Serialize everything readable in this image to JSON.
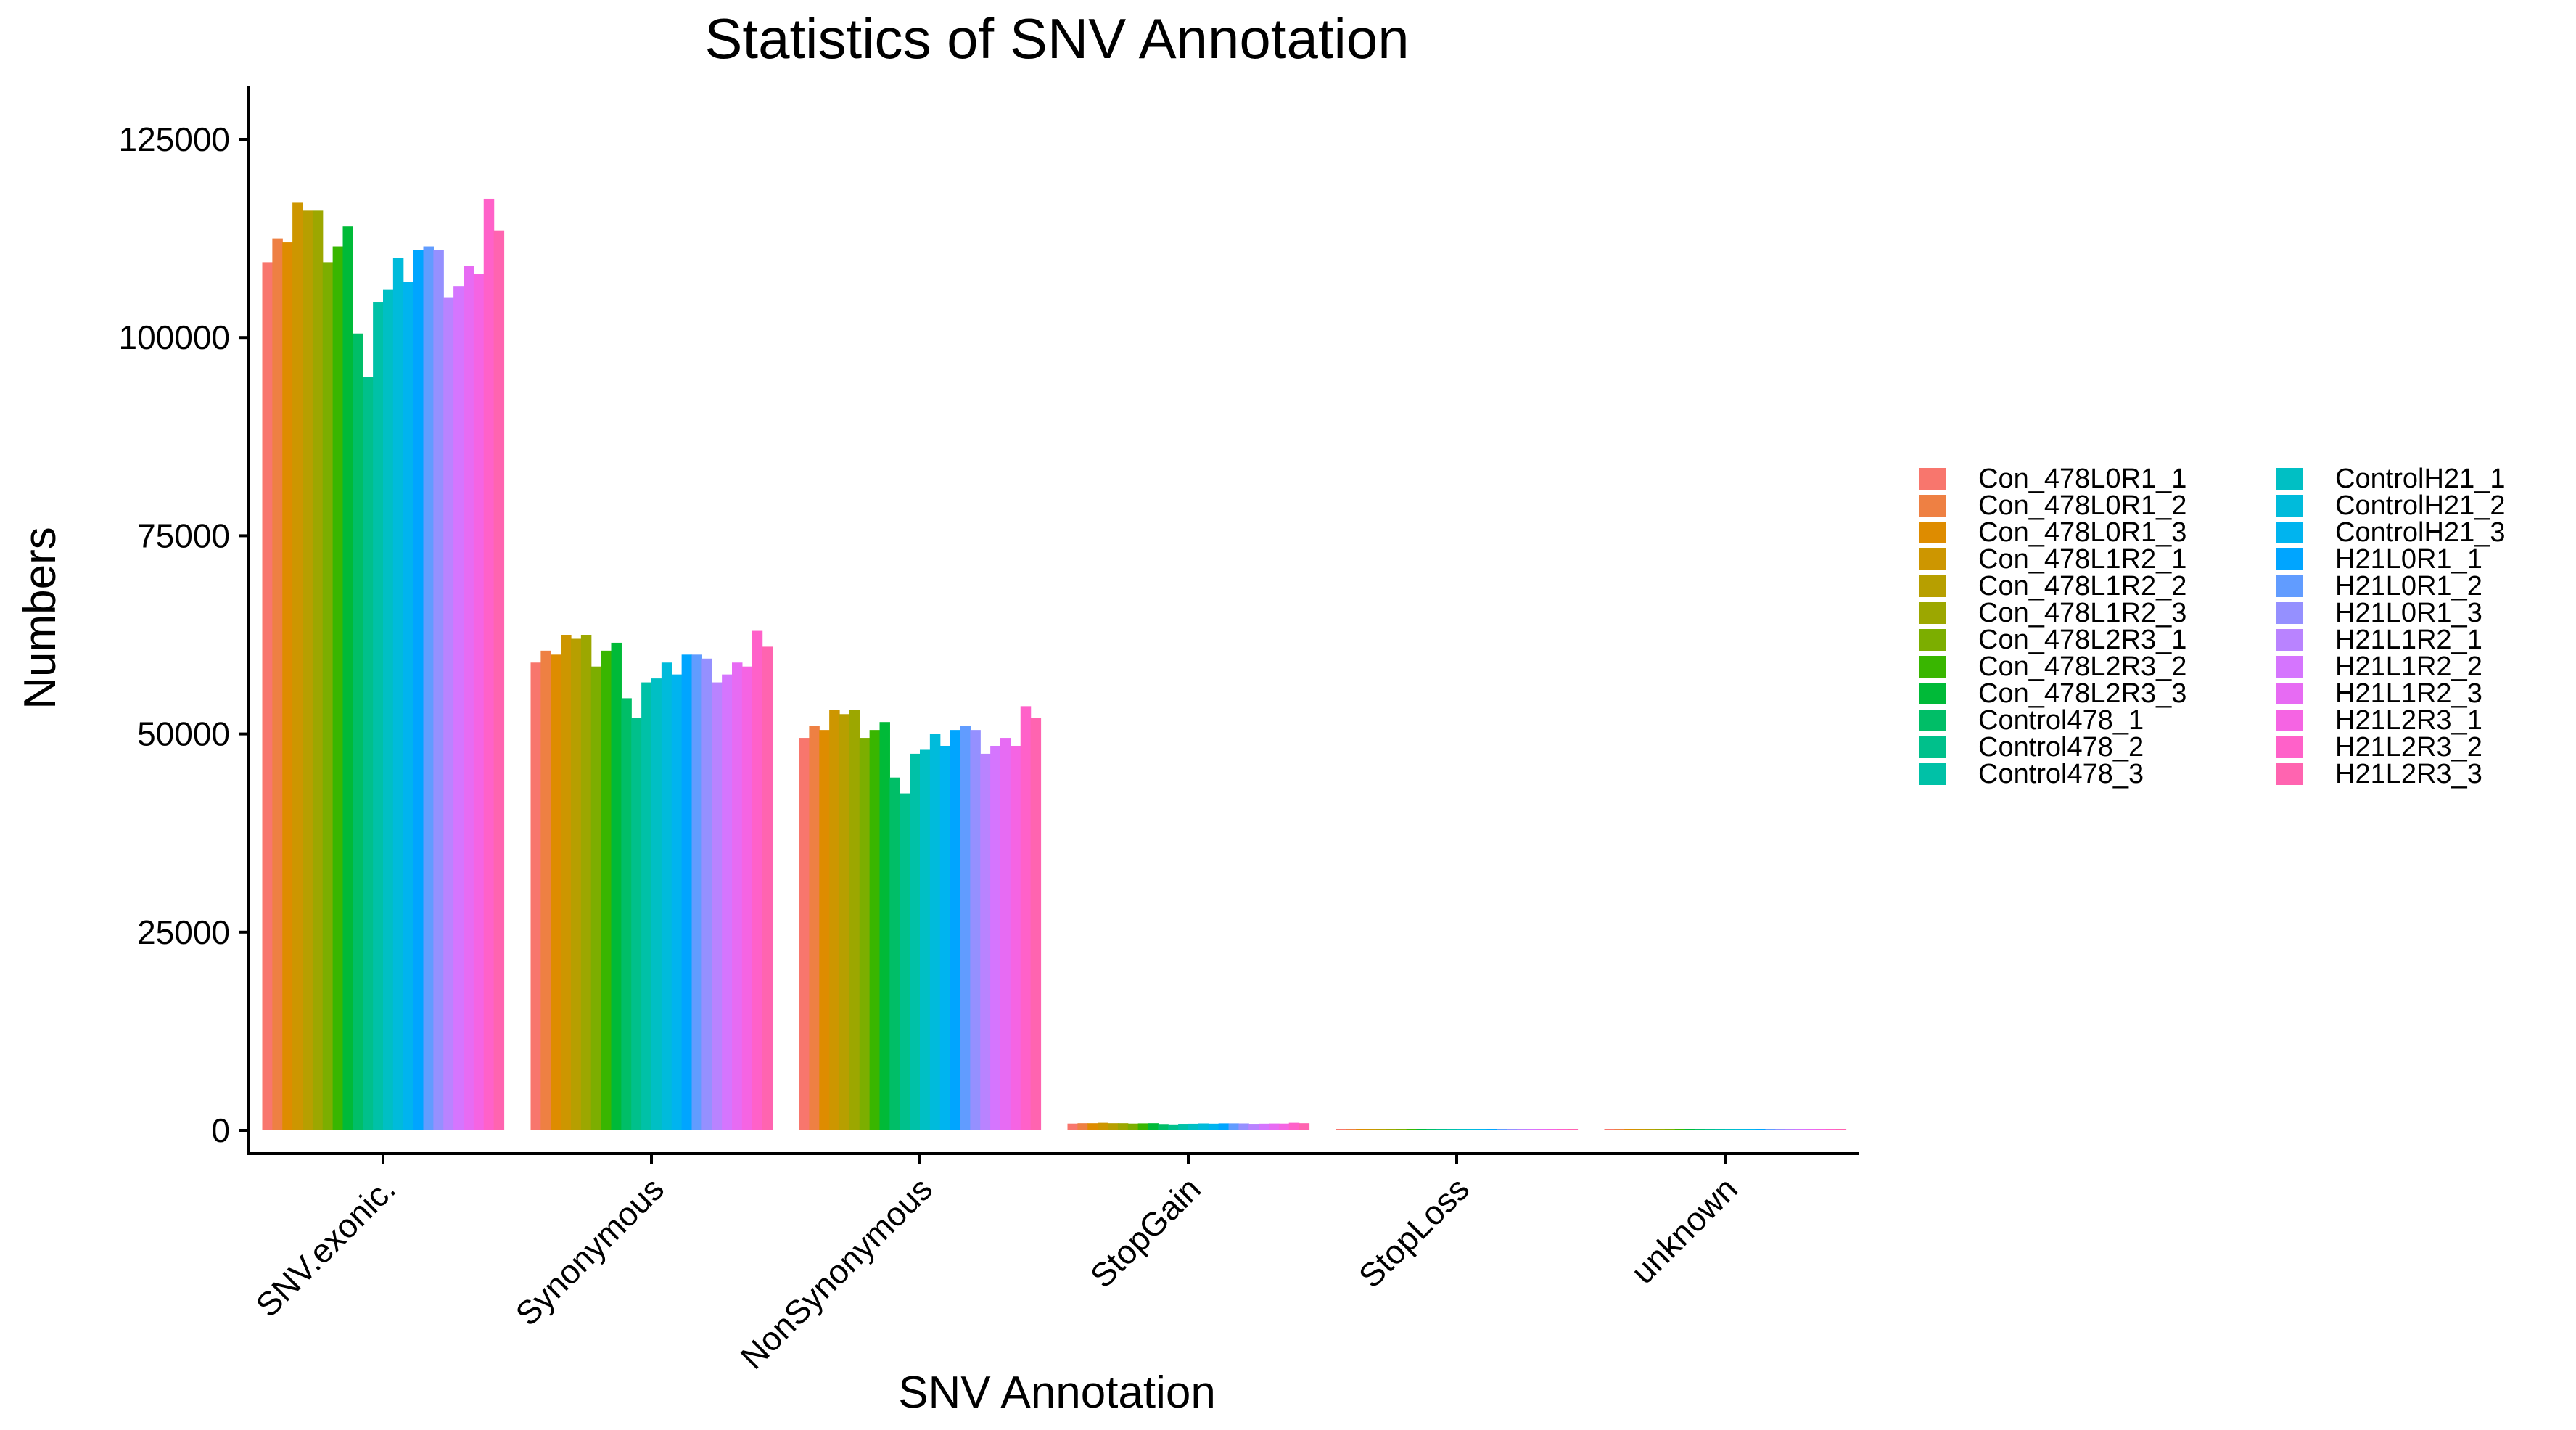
{
  "chart_data": {
    "type": "bar",
    "title": "Statistics of SNV Annotation",
    "xlabel": "SNV Annotation",
    "ylabel": "Numbers",
    "ylim": [
      0,
      125000
    ],
    "yticks": [
      0,
      25000,
      50000,
      75000,
      100000,
      125000
    ],
    "ytick_labels": [
      "0",
      "25000",
      "50000",
      "75000",
      "100000",
      "125000"
    ],
    "grid": false,
    "legend_position": "right",
    "categories": [
      "SNV.exonic.",
      "Synonymous",
      "NonSynonymous",
      "StopGain",
      "StopLoss",
      "unknown"
    ],
    "series": [
      {
        "name": "Con_478L0R1_1",
        "color": "#F8766D",
        "values": [
          109500,
          59000,
          49500,
          850,
          90,
          80
        ]
      },
      {
        "name": "Con_478L0R1_2",
        "color": "#EE8043",
        "values": [
          112500,
          60500,
          51000,
          900,
          90,
          80
        ]
      },
      {
        "name": "Con_478L0R1_3",
        "color": "#DE8C00",
        "values": [
          112000,
          60000,
          50500,
          900,
          90,
          80
        ]
      },
      {
        "name": "Con_478L1R2_1",
        "color": "#CD9600",
        "values": [
          117000,
          62500,
          53000,
          950,
          95,
          85
        ]
      },
      {
        "name": "Con_478L1R2_2",
        "color": "#B79F00",
        "values": [
          116000,
          62000,
          52500,
          900,
          95,
          85
        ]
      },
      {
        "name": "Con_478L1R2_3",
        "color": "#9CA700",
        "values": [
          116000,
          62500,
          53000,
          900,
          95,
          85
        ]
      },
      {
        "name": "Con_478L2R3_1",
        "color": "#7CAE00",
        "values": [
          109500,
          58500,
          49500,
          850,
          90,
          80
        ]
      },
      {
        "name": "Con_478L2R3_2",
        "color": "#39B600",
        "values": [
          111500,
          60500,
          50500,
          880,
          90,
          80
        ]
      },
      {
        "name": "Con_478L2R3_3",
        "color": "#00BA38",
        "values": [
          114000,
          61500,
          51500,
          900,
          95,
          85
        ]
      },
      {
        "name": "Control478_1",
        "color": "#00BE67",
        "values": [
          100500,
          54500,
          44500,
          800,
          85,
          75
        ]
      },
      {
        "name": "Control478_2",
        "color": "#00C08B",
        "values": [
          95000,
          52000,
          42500,
          750,
          80,
          70
        ]
      },
      {
        "name": "Control478_3",
        "color": "#00C1A7",
        "values": [
          104500,
          56500,
          47500,
          820,
          85,
          75
        ]
      },
      {
        "name": "ControlH21_1",
        "color": "#00BFC4",
        "values": [
          106000,
          57000,
          48000,
          830,
          85,
          75
        ]
      },
      {
        "name": "ControlH21_2",
        "color": "#00BBDB",
        "values": [
          110000,
          59000,
          50000,
          870,
          90,
          80
        ]
      },
      {
        "name": "ControlH21_3",
        "color": "#00B4EF",
        "values": [
          107000,
          57500,
          48500,
          840,
          85,
          75
        ]
      },
      {
        "name": "H21L0R1_1",
        "color": "#00A5FF",
        "values": [
          111000,
          60000,
          50500,
          880,
          90,
          80
        ]
      },
      {
        "name": "H21L0R1_2",
        "color": "#619CFF",
        "values": [
          111500,
          60000,
          51000,
          880,
          90,
          80
        ]
      },
      {
        "name": "H21L0R1_3",
        "color": "#9590FF",
        "values": [
          111000,
          59500,
          50500,
          870,
          90,
          80
        ]
      },
      {
        "name": "H21L1R2_1",
        "color": "#B983FF",
        "values": [
          105000,
          56500,
          47500,
          820,
          85,
          75
        ]
      },
      {
        "name": "H21L1R2_2",
        "color": "#D575FE",
        "values": [
          106500,
          57500,
          48500,
          840,
          85,
          75
        ]
      },
      {
        "name": "H21L1R2_3",
        "color": "#E76BF3",
        "values": [
          109000,
          59000,
          49500,
          860,
          90,
          80
        ]
      },
      {
        "name": "H21L2R3_1",
        "color": "#F564E3",
        "values": [
          108000,
          58500,
          48500,
          850,
          90,
          80
        ]
      },
      {
        "name": "H21L2R3_2",
        "color": "#FF61C9",
        "values": [
          117500,
          63000,
          53500,
          950,
          95,
          85
        ]
      },
      {
        "name": "H21L2R3_3",
        "color": "#FF64B0",
        "values": [
          113500,
          61000,
          52000,
          900,
          95,
          85
        ]
      }
    ]
  }
}
